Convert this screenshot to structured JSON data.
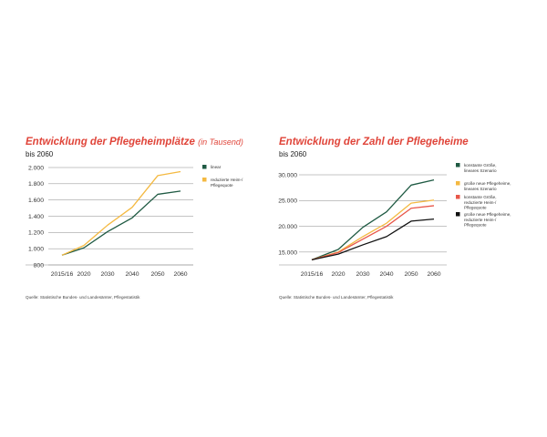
{
  "colors": {
    "title": "#e0453a",
    "dark_green": "#1f5a43",
    "yellow": "#f4b941",
    "red": "#e8574a",
    "black": "#111111",
    "grid": "#8a8a8a"
  },
  "chart_data": [
    {
      "type": "line",
      "title": "Entwicklung der Pflegeheimplätze",
      "title_unit": "(in Tausend)",
      "subtitle": "bis 2060",
      "source": "Quelle: Statistische Bundes- und Landesämter, Pflegestatistik",
      "x": [
        "2015/16",
        "2020",
        "2030",
        "2040",
        "2050",
        "2060"
      ],
      "y_ticks": [
        "2.000",
        "1.800",
        "1.600",
        "1.400",
        "1.200",
        "1.000",
        "800"
      ],
      "ylim": [
        800,
        2000
      ],
      "grid": true,
      "legend_position": "right",
      "series": [
        {
          "name": "linear",
          "color": "#1f5a43",
          "values": [
            920,
            1010,
            1210,
            1380,
            1670,
            1710
          ]
        },
        {
          "name": "reduzierte Heim-/ Pflegequote",
          "color": "#f4b941",
          "values": [
            920,
            1040,
            1290,
            1510,
            1900,
            1950
          ]
        }
      ]
    },
    {
      "type": "line",
      "title": "Entwicklung der Zahl  der Pflegeheime",
      "title_unit": "",
      "subtitle": "bis 2060",
      "source": "Quelle: Statistische Bundes- und Landesämter, Pflegestatistik",
      "x": [
        "2015/16",
        "2020",
        "2030",
        "2040",
        "2050",
        "2060"
      ],
      "y_ticks": [
        "30.000",
        "25.000",
        "20.000",
        "15.000"
      ],
      "ylim": [
        12500,
        30000
      ],
      "grid": true,
      "legend_position": "right",
      "series": [
        {
          "name": "konstante Größe, lineares Szenario",
          "color": "#1f5a43",
          "values": [
            13500,
            15500,
            19800,
            22800,
            28000,
            29000
          ]
        },
        {
          "name": "große neue Pflegeheime, lineares Szenario",
          "color": "#f4b941",
          "values": [
            13500,
            15000,
            18000,
            20600,
            24500,
            25100
          ]
        },
        {
          "name": "konstante Größe, reduzierte Heim-/ Pflegequote",
          "color": "#e8574a",
          "values": [
            13500,
            14900,
            17500,
            20000,
            23500,
            24000
          ]
        },
        {
          "name": "große neue Pflegeheime, reduzierte Heim-/ Pflegequote",
          "color": "#111111",
          "values": [
            13500,
            14600,
            16400,
            18000,
            21000,
            21400
          ]
        }
      ]
    }
  ]
}
